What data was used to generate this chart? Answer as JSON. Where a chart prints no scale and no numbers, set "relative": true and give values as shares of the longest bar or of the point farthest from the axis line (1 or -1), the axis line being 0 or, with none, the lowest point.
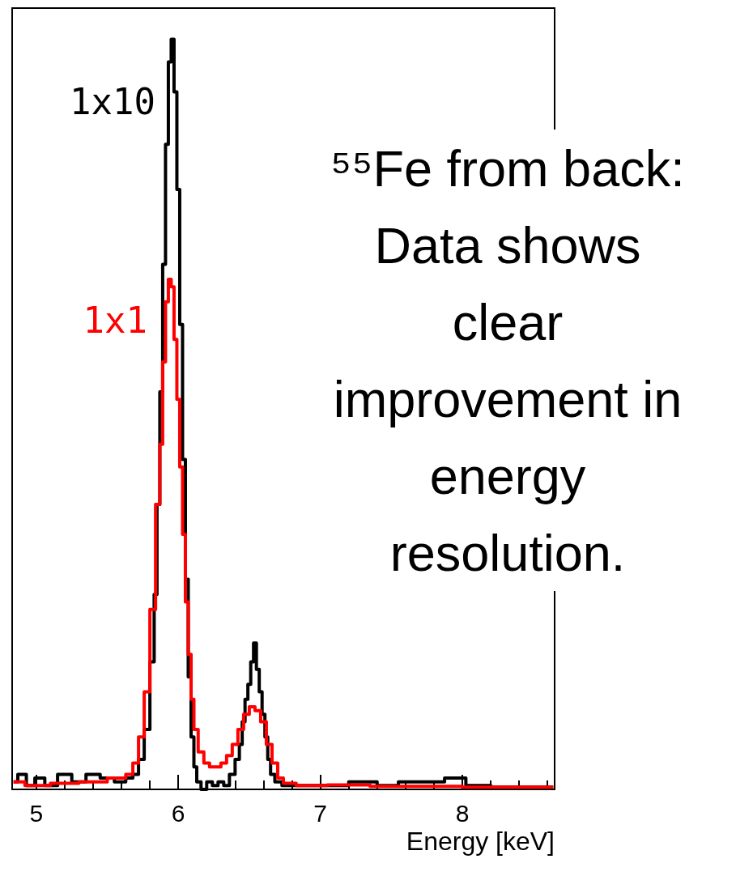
{
  "chart_data": {
    "type": "step",
    "relative": true,
    "xlabel": "Energy [keV]",
    "xlim": [
      4.83,
      8.65
    ],
    "xticks": [
      5,
      {
        "value": 5.2,
        "label": null
      },
      {
        "value": 5.4,
        "label": null
      },
      {
        "value": 5.6,
        "label": null
      },
      {
        "value": 5.8,
        "label": null
      },
      6,
      {
        "value": 6.2,
        "label": null
      },
      {
        "value": 6.4,
        "label": null
      },
      {
        "value": 6.6,
        "label": null
      },
      {
        "value": 6.8,
        "label": null
      },
      7,
      {
        "value": 7.2,
        "label": null
      },
      {
        "value": 7.4,
        "label": null
      },
      {
        "value": 7.6,
        "label": null
      },
      {
        "value": 7.8,
        "label": null
      },
      8,
      {
        "value": 8.2,
        "label": null
      },
      {
        "value": 8.4,
        "label": null
      },
      {
        "value": 8.6,
        "label": null
      }
    ],
    "tick_labels": "x",
    "grid": false,
    "legend": false,
    "annotations": [
      "⁵⁵Fe from back:\nData shows\nclear\nimprovement in\nenergy\nresolution."
    ],
    "series": [
      {
        "name": "1x10",
        "color": "#000000",
        "x": [
          4.84,
          4.9,
          4.96,
          5.02,
          5.1,
          5.2,
          5.3,
          5.4,
          5.5,
          5.6,
          5.66,
          5.7,
          5.74,
          5.78,
          5.82,
          5.84,
          5.86,
          5.88,
          5.9,
          5.92,
          5.94,
          5.96,
          5.98,
          6.0,
          6.02,
          6.04,
          6.06,
          6.08,
          6.1,
          6.12,
          6.14,
          6.18,
          6.22,
          6.26,
          6.3,
          6.34,
          6.38,
          6.42,
          6.44,
          6.46,
          6.48,
          6.5,
          6.52,
          6.54,
          6.56,
          6.58,
          6.6,
          6.62,
          6.64,
          6.66,
          6.7,
          6.76,
          6.9,
          7.1,
          7.3,
          7.5,
          7.6,
          7.8,
          7.95,
          8.1,
          8.3,
          8.64
        ],
        "values": [
          0.01,
          0.02,
          0.005,
          0.015,
          0.005,
          0.02,
          0.01,
          0.02,
          0.015,
          0.01,
          0.015,
          0.02,
          0.04,
          0.08,
          0.17,
          0.26,
          0.38,
          0.53,
          0.7,
          0.86,
          0.97,
          1.0,
          0.93,
          0.8,
          0.62,
          0.44,
          0.28,
          0.15,
          0.07,
          0.03,
          0.01,
          0.0,
          0.01,
          0.005,
          0.01,
          0.005,
          0.02,
          0.04,
          0.06,
          0.09,
          0.12,
          0.14,
          0.17,
          0.195,
          0.16,
          0.13,
          0.1,
          0.07,
          0.04,
          0.02,
          0.01,
          0.005,
          0.005,
          0.005,
          0.01,
          0.005,
          0.01,
          0.01,
          0.015,
          0.005,
          0.003,
          0.003
        ]
      },
      {
        "name": "1x1",
        "color": "#ff0000",
        "x": [
          4.84,
          5.0,
          5.2,
          5.4,
          5.6,
          5.66,
          5.7,
          5.74,
          5.78,
          5.82,
          5.86,
          5.88,
          5.9,
          5.92,
          5.94,
          5.96,
          5.98,
          6.0,
          6.02,
          6.04,
          6.06,
          6.08,
          6.1,
          6.12,
          6.16,
          6.2,
          6.24,
          6.28,
          6.32,
          6.36,
          6.4,
          6.44,
          6.48,
          6.52,
          6.56,
          6.6,
          6.64,
          6.68,
          6.72,
          6.76,
          6.9,
          7.2,
          7.5,
          7.8,
          8.2,
          8.64
        ],
        "values": [
          0.01,
          0.005,
          0.008,
          0.01,
          0.015,
          0.02,
          0.035,
          0.07,
          0.13,
          0.24,
          0.38,
          0.46,
          0.57,
          0.65,
          0.68,
          0.67,
          0.6,
          0.52,
          0.43,
          0.34,
          0.25,
          0.18,
          0.12,
          0.08,
          0.05,
          0.035,
          0.03,
          0.03,
          0.035,
          0.045,
          0.06,
          0.08,
          0.1,
          0.11,
          0.105,
          0.09,
          0.06,
          0.035,
          0.015,
          0.008,
          0.005,
          0.006,
          0.004,
          0.004,
          0.003,
          0.003
        ]
      }
    ]
  }
}
